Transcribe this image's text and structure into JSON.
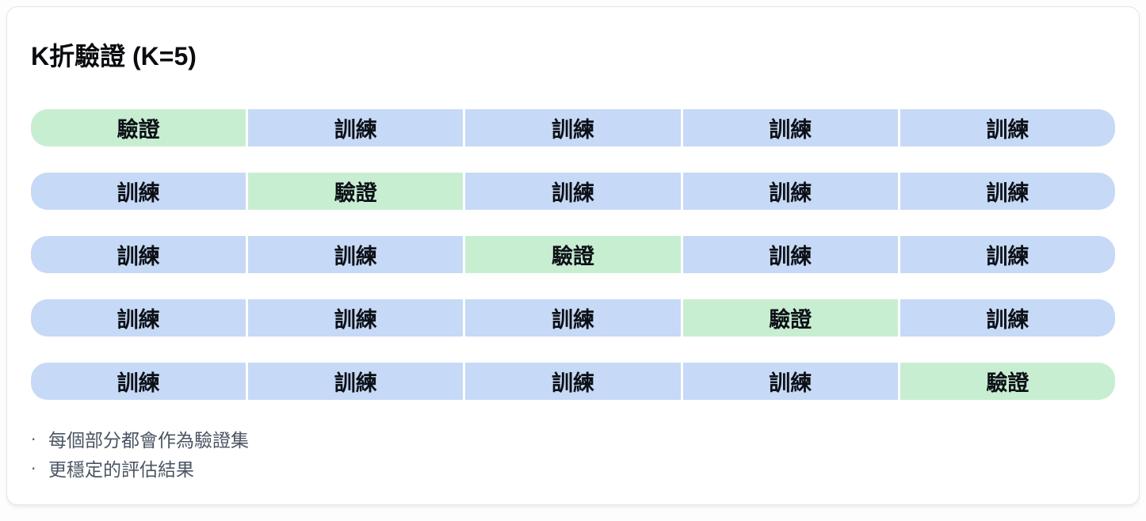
{
  "title": "K折驗證 (K=5)",
  "labels": {
    "validation": "驗證",
    "training": "訓練"
  },
  "folds": {
    "k": 5,
    "rows": [
      {
        "segments": [
          "validation",
          "training",
          "training",
          "training",
          "training"
        ]
      },
      {
        "segments": [
          "training",
          "validation",
          "training",
          "training",
          "training"
        ]
      },
      {
        "segments": [
          "training",
          "training",
          "validation",
          "training",
          "training"
        ]
      },
      {
        "segments": [
          "training",
          "training",
          "training",
          "validation",
          "training"
        ]
      },
      {
        "segments": [
          "training",
          "training",
          "training",
          "training",
          "validation"
        ]
      }
    ]
  },
  "notes": [
    {
      "bullet": "‧",
      "text": "每個部分都會作為驗證集"
    },
    {
      "bullet": "‧",
      "text": "更穩定的評估結果"
    }
  ],
  "colors": {
    "validation_bg": "#c8eed2",
    "training_bg": "#c6d9f6",
    "label_color": "#0d1117",
    "title_color": "#0a0c10",
    "note_color": "#4b5563",
    "card_border": "#e4e5e9",
    "card_bg": "#ffffff",
    "page_bg": "#fdfdfe"
  }
}
